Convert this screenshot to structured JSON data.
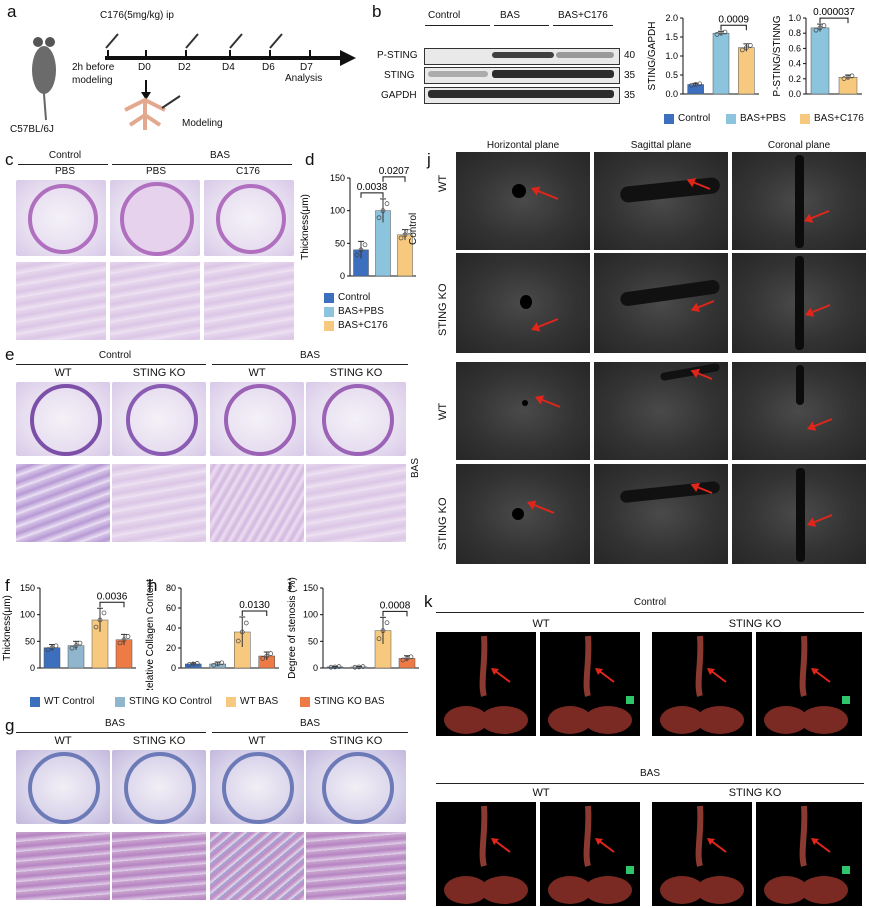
{
  "panels": {
    "a": "a",
    "b": "b",
    "c": "c",
    "d": "d",
    "e": "e",
    "f": "f",
    "g": "g",
    "h": "h",
    "i": "i",
    "j": "j",
    "k": "k"
  },
  "a": {
    "dose": "C176(5mg/kg) ip",
    "strain": "C57BL/6J",
    "pre": "2h before",
    "pre2": "modeling",
    "days": [
      "D0",
      "D2",
      "D4",
      "D6",
      "D7"
    ],
    "analysis": "Analysis",
    "modeling": "Modeling"
  },
  "b": {
    "groups": [
      "Control",
      "BAS",
      "BAS+C176"
    ],
    "rows": [
      "P-STING",
      "STING",
      "GAPDH"
    ],
    "kda": [
      "40",
      "35",
      "35"
    ],
    "legend": [
      "Control",
      "BAS+PBS",
      "BAS+C176"
    ]
  },
  "c": {
    "top": [
      "Control",
      "BAS"
    ],
    "sub": [
      "PBS",
      "PBS",
      "C176"
    ]
  },
  "e": {
    "top": [
      "Control",
      "BAS"
    ],
    "sub": [
      "WT",
      "STING KO",
      "WT",
      "STING KO"
    ]
  },
  "g": {
    "top": [
      "BAS",
      "BAS"
    ],
    "sub": [
      "WT",
      "STING KO",
      "WT",
      "STING KO"
    ]
  },
  "j": {
    "cols": [
      "Horizontal plane",
      "Sagittal plane",
      "Coronal plane"
    ],
    "groups": [
      "Control",
      "BAS"
    ],
    "rows": [
      "WT",
      "STING KO",
      "WT",
      "STING KO"
    ]
  },
  "k": {
    "groups": [
      "Control",
      "BAS"
    ],
    "sub": [
      "WT",
      "STING KO"
    ]
  },
  "legend_fi": [
    "WT Control",
    "STING KO Control",
    "WT BAS",
    "STING KO BAS"
  ],
  "colors": {
    "control": "#3c6fbd",
    "pbs": "#8cc3dd",
    "c176": "#f6c97f",
    "wtctrl": "#3c6fbd",
    "koctrl": "#8fb6cc",
    "wtbas": "#f6c97f",
    "kobas": "#ee7a45"
  },
  "chart_data": [
    {
      "id": "b-left",
      "type": "bar",
      "ylabel": "STING/GAPDH",
      "categories": [
        "Control",
        "BAS+PBS",
        "BAS+C176"
      ],
      "values": [
        0.25,
        1.6,
        1.22
      ],
      "errors": [
        0.03,
        0.05,
        0.1
      ],
      "ylim": [
        0,
        2.0
      ],
      "yticks": [
        "0.0",
        "0.5",
        "1.0",
        "1.5",
        "2.0"
      ],
      "pvalues": [
        {
          "from": 1,
          "to": 2,
          "label": "0.0009"
        }
      ]
    },
    {
      "id": "b-right",
      "type": "bar",
      "ylabel": "P-STING/STINNG",
      "categories": [
        "BAS+PBS",
        "BAS+C176"
      ],
      "values": [
        0.87,
        0.22
      ],
      "errors": [
        0.05,
        0.03
      ],
      "ylim": [
        0,
        1.0
      ],
      "yticks": [
        "0.0",
        "0.2",
        "0.4",
        "0.6",
        "0.8",
        "1.0"
      ],
      "pvalues": [
        {
          "from": 0,
          "to": 1,
          "label": "0.000037"
        }
      ]
    },
    {
      "id": "d",
      "type": "bar",
      "ylabel": "Thickness(μm)",
      "categories": [
        "Control",
        "BAS+PBS",
        "BAS+C176"
      ],
      "values": [
        40,
        100,
        63
      ],
      "errors": [
        13,
        18,
        8
      ],
      "ylim": [
        0,
        150
      ],
      "yticks": [
        "0",
        "50",
        "100",
        "150"
      ],
      "pvalues": [
        {
          "from": 0,
          "to": 1,
          "label": "0.0038"
        },
        {
          "from": 1,
          "to": 2,
          "label": "0.0207"
        }
      ]
    },
    {
      "id": "f",
      "type": "bar",
      "ylabel": "Thickness(μm)",
      "categories": [
        "WT Control",
        "STING KO Control",
        "WT BAS",
        "STING KO BAS"
      ],
      "values": [
        38,
        42,
        90,
        53
      ],
      "errors": [
        6,
        8,
        22,
        10
      ],
      "ylim": [
        0,
        150
      ],
      "yticks": [
        "0",
        "50",
        "100",
        "150"
      ],
      "pvalues": [
        {
          "from": 2,
          "to": 3,
          "label": "0.0036"
        }
      ]
    },
    {
      "id": "h",
      "type": "bar",
      "ylabel": "Relative Collagen Content  (%)",
      "categories": [
        "WT Control",
        "STING KO Control",
        "WT BAS",
        "STING KO BAS"
      ],
      "values": [
        4,
        4,
        36,
        12
      ],
      "errors": [
        1,
        2,
        15,
        4
      ],
      "ylim": [
        0,
        80
      ],
      "yticks": [
        "0",
        "20",
        "40",
        "60",
        "80"
      ],
      "pvalues": [
        {
          "from": 2,
          "to": 3,
          "label": "0.0130"
        }
      ]
    },
    {
      "id": "i",
      "type": "bar",
      "ylabel": "Degree of  stenosis (%)",
      "categories": [
        "WT Control",
        "STING KO Control",
        "WT BAS",
        "STING KO BAS"
      ],
      "values": [
        2,
        2,
        70,
        18
      ],
      "errors": [
        1,
        1,
        25,
        5
      ],
      "ylim": [
        0,
        150
      ],
      "yticks": [
        "0",
        "50",
        "100",
        "150"
      ],
      "pvalues": [
        {
          "from": 2,
          "to": 3,
          "label": "0.0008"
        }
      ]
    }
  ]
}
